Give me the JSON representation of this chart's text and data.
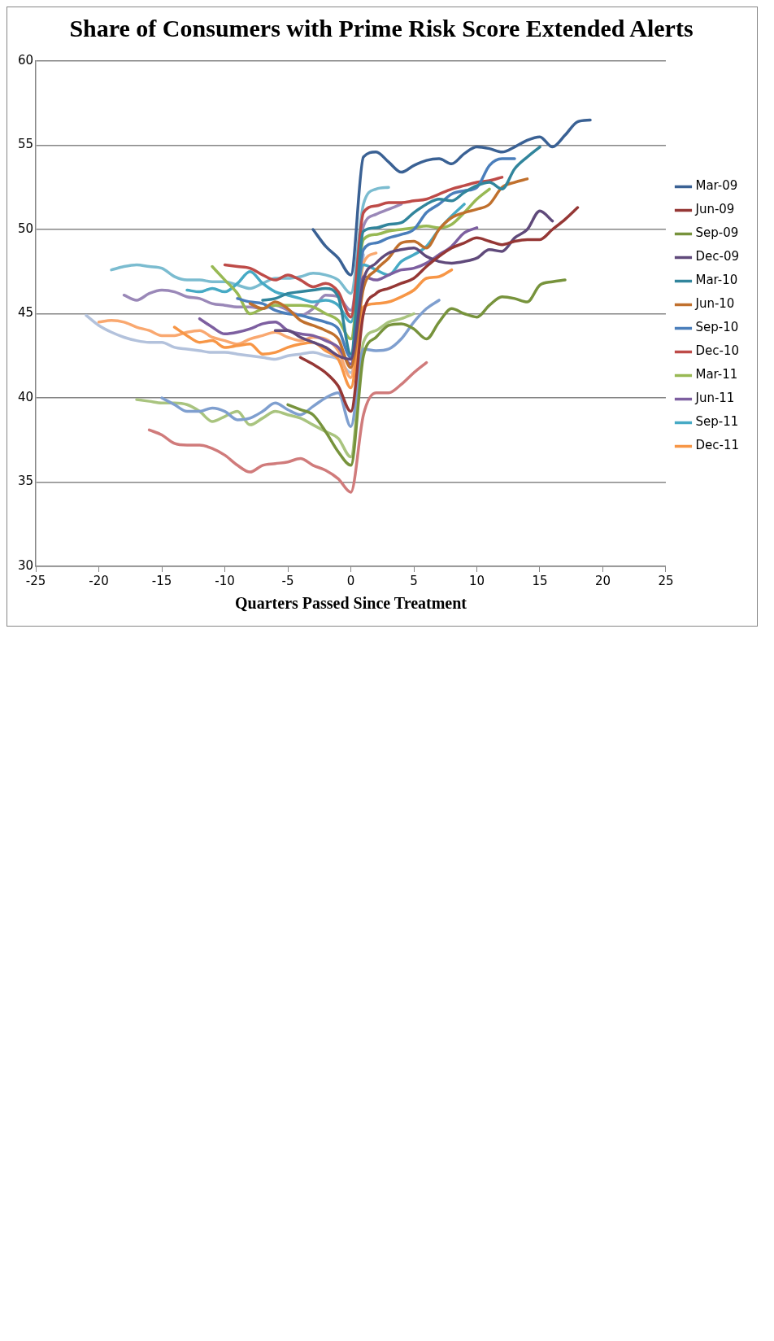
{
  "chart_data": {
    "type": "line",
    "title": "Share of Consumers with Prime Risk Score Extended Alerts",
    "xlabel": "Quarters Passed Since Treatment",
    "xlim": [
      -25,
      25
    ],
    "xticks": [
      -25,
      -20,
      -15,
      -10,
      -5,
      0,
      5,
      10,
      15,
      20,
      25
    ],
    "ylim": [
      30,
      60
    ],
    "yticks": [
      30,
      35,
      40,
      45,
      50,
      55,
      60
    ],
    "grid": "y",
    "legend": "right",
    "marker": "none",
    "line_style": "solid",
    "series": [
      {
        "name": "Mar-09",
        "color": "#3a6194",
        "x": [
          -3,
          -2,
          -1,
          0,
          1,
          2,
          3,
          4,
          5,
          6,
          7,
          8,
          9,
          10,
          11,
          12,
          13,
          14,
          15,
          16,
          17,
          18,
          19
        ],
        "values": [
          50.0,
          49.0,
          48.3,
          47.3,
          54.3,
          54.6,
          54.0,
          53.4,
          53.8,
          54.1,
          54.2,
          53.9,
          54.5,
          54.9,
          54.8,
          54.6,
          54.9,
          55.3,
          55.5,
          54.9,
          55.6,
          56.4,
          56.5
        ]
      },
      {
        "name": "Jun-09",
        "color": "#953735",
        "x": [
          -4,
          -3,
          -2,
          -1,
          0,
          1,
          2,
          3,
          4,
          5,
          6,
          7,
          8,
          9,
          10,
          11,
          12,
          13,
          14,
          15,
          16,
          17,
          18
        ],
        "values": [
          42.4,
          42.0,
          41.5,
          40.7,
          39.2,
          45.0,
          46.2,
          46.5,
          46.8,
          47.1,
          47.8,
          48.4,
          48.9,
          49.2,
          49.5,
          49.3,
          49.1,
          49.3,
          49.4,
          49.4,
          50.0,
          50.6,
          51.3
        ]
      },
      {
        "name": "Sep-09",
        "color": "#77933c",
        "x": [
          -5,
          -4,
          -3,
          -2,
          -1,
          0,
          1,
          2,
          3,
          4,
          5,
          6,
          7,
          8,
          9,
          10,
          11,
          12,
          13,
          14,
          15,
          16,
          17
        ],
        "values": [
          39.6,
          39.3,
          39.0,
          38.0,
          36.8,
          36.0,
          42.5,
          43.6,
          44.3,
          44.4,
          44.1,
          43.5,
          44.5,
          45.3,
          45.0,
          44.8,
          45.5,
          46.0,
          45.9,
          45.7,
          46.7,
          46.9,
          47.0
        ]
      },
      {
        "name": "Dec-09",
        "color": "#604a7b",
        "x": [
          -6,
          -5,
          -4,
          -3,
          -2,
          -1,
          0,
          1,
          2,
          3,
          4,
          5,
          6,
          7,
          8,
          9,
          10,
          11,
          12,
          13,
          14,
          15,
          16
        ],
        "values": [
          44.0,
          44.0,
          43.6,
          43.3,
          43.0,
          42.5,
          42.3,
          47.0,
          48.0,
          48.6,
          48.8,
          48.9,
          48.4,
          48.1,
          48.0,
          48.1,
          48.3,
          48.8,
          48.7,
          49.5,
          50.0,
          51.1,
          50.5
        ]
      },
      {
        "name": "Mar-10",
        "color": "#31859c",
        "x": [
          -7,
          -6,
          -5,
          -4,
          -3,
          -2,
          -1,
          0,
          1,
          2,
          3,
          4,
          5,
          6,
          7,
          8,
          9,
          10,
          11,
          12,
          13,
          14,
          15
        ],
        "values": [
          45.8,
          45.9,
          46.2,
          46.3,
          46.4,
          46.5,
          46.0,
          42.6,
          49.9,
          50.1,
          50.3,
          50.4,
          51.0,
          51.5,
          51.8,
          51.7,
          52.2,
          52.6,
          52.8,
          52.4,
          53.6,
          54.3,
          54.9
        ]
      },
      {
        "name": "Jun-10",
        "color": "#c0702d",
        "x": [
          -8,
          -7,
          -6,
          -5,
          -4,
          -3,
          -2,
          -1,
          0,
          1,
          2,
          3,
          4,
          5,
          6,
          7,
          8,
          9,
          10,
          11,
          12,
          13,
          14
        ],
        "values": [
          45.6,
          45.3,
          45.7,
          45.3,
          44.6,
          44.3,
          44.0,
          43.5,
          41.8,
          46.5,
          47.6,
          48.3,
          49.2,
          49.3,
          48.9,
          50.0,
          50.7,
          51.0,
          51.2,
          51.5,
          52.5,
          52.8,
          53.0
        ]
      },
      {
        "name": "Sep-10",
        "color": "#4a7ebb",
        "x": [
          -9,
          -8,
          -7,
          -6,
          -5,
          -4,
          -3,
          -2,
          -1,
          0,
          1,
          2,
          3,
          4,
          5,
          6,
          7,
          8,
          9,
          10,
          11,
          12,
          13
        ],
        "values": [
          45.9,
          45.7,
          45.6,
          45.2,
          45.0,
          44.9,
          44.7,
          44.5,
          44.1,
          42.4,
          48.8,
          49.2,
          49.5,
          49.7,
          50.0,
          51.0,
          51.5,
          52.1,
          52.3,
          52.5,
          53.8,
          54.2,
          54.2
        ]
      },
      {
        "name": "Dec-10",
        "color": "#be4b48",
        "x": [
          -10,
          -9,
          -8,
          -7,
          -6,
          -5,
          -4,
          -3,
          -2,
          -1,
          0,
          1,
          2,
          3,
          4,
          5,
          6,
          7,
          8,
          9,
          10,
          11,
          12
        ],
        "values": [
          47.9,
          47.8,
          47.7,
          47.3,
          47.0,
          47.3,
          47.0,
          46.6,
          46.8,
          46.3,
          44.8,
          51.0,
          51.4,
          51.6,
          51.6,
          51.7,
          51.8,
          52.1,
          52.4,
          52.6,
          52.8,
          52.9,
          53.1
        ]
      },
      {
        "name": "Mar-11",
        "color": "#98b954",
        "x": [
          -11,
          -10,
          -9,
          -8,
          -7,
          -6,
          -5,
          -4,
          -3,
          -2,
          -1,
          0,
          1,
          2,
          3,
          4,
          5,
          6,
          7,
          8,
          9,
          10,
          11
        ],
        "values": [
          47.8,
          47.0,
          46.2,
          45.0,
          45.3,
          45.5,
          45.5,
          45.5,
          45.4,
          45.0,
          44.6,
          43.5,
          49.4,
          49.7,
          49.9,
          50.0,
          50.1,
          50.2,
          50.1,
          50.3,
          51.0,
          51.8,
          52.4
        ]
      },
      {
        "name": "Jun-11",
        "color": "#7d5fa0",
        "x": [
          -12,
          -11,
          -10,
          -9,
          -8,
          -7,
          -6,
          -5,
          -4,
          -3,
          -2,
          -1,
          0,
          1,
          2,
          3,
          4,
          5,
          6,
          7,
          8,
          9,
          10
        ],
        "values": [
          44.7,
          44.2,
          43.8,
          43.9,
          44.1,
          44.4,
          44.5,
          44.0,
          43.8,
          43.7,
          43.4,
          43.0,
          42.0,
          47.2,
          47.0,
          47.3,
          47.6,
          47.7,
          48.0,
          48.5,
          49.0,
          49.8,
          50.1
        ]
      },
      {
        "name": "Sep-11",
        "color": "#46aac5",
        "x": [
          -13,
          -12,
          -11,
          -10,
          -9,
          -8,
          -7,
          -6,
          -5,
          -4,
          -3,
          -2,
          -1,
          0,
          1,
          2,
          3,
          4,
          5,
          6,
          7,
          8,
          9
        ],
        "values": [
          46.4,
          46.3,
          46.5,
          46.3,
          46.8,
          47.5,
          46.8,
          46.3,
          46.1,
          45.9,
          45.7,
          45.8,
          45.5,
          44.5,
          47.9,
          47.6,
          47.3,
          48.1,
          48.5,
          49.0,
          50.0,
          50.8,
          51.5
        ]
      },
      {
        "name": "Dec-11",
        "color": "#f79646",
        "x": [
          -14,
          -13,
          -12,
          -11,
          -10,
          -9,
          -8,
          -7,
          -6,
          -5,
          -4,
          -3,
          -2,
          -1,
          0,
          1,
          2,
          3,
          4,
          5,
          6,
          7,
          8
        ],
        "values": [
          44.2,
          43.7,
          43.3,
          43.4,
          43.0,
          43.1,
          43.2,
          42.6,
          42.7,
          43.0,
          43.2,
          43.3,
          42.8,
          42.3,
          40.6,
          45.4,
          45.6,
          45.7,
          46.0,
          46.4,
          47.1,
          47.2,
          47.6
        ]
      },
      {
        "color": "#7f9fcf",
        "x": [
          -15,
          -14,
          -13,
          -12,
          -11,
          -10,
          -9,
          -8,
          -7,
          -6,
          -5,
          -4,
          -3,
          -2,
          -1,
          0,
          1,
          2,
          3,
          4,
          5,
          6,
          7
        ],
        "values": [
          40.0,
          39.6,
          39.2,
          39.2,
          39.4,
          39.2,
          38.7,
          38.8,
          39.2,
          39.7,
          39.3,
          39.0,
          39.5,
          40.0,
          40.3,
          38.3,
          42.9,
          42.8,
          42.9,
          43.5,
          44.5,
          45.3,
          45.8
        ]
      },
      {
        "color": "#d07b7b",
        "x": [
          -16,
          -15,
          -14,
          -13,
          -12,
          -11,
          -10,
          -9,
          -8,
          -7,
          -6,
          -5,
          -4,
          -3,
          -2,
          -1,
          0,
          1,
          2,
          3,
          4,
          5,
          6
        ],
        "values": [
          38.1,
          37.8,
          37.3,
          37.2,
          37.2,
          37.0,
          36.6,
          36.0,
          35.6,
          36.0,
          36.1,
          36.2,
          36.4,
          36.0,
          35.7,
          35.2,
          34.4,
          39.0,
          40.3,
          40.3,
          40.8,
          41.5,
          42.1
        ]
      },
      {
        "color": "#a9c47f",
        "x": [
          -17,
          -16,
          -15,
          -14,
          -13,
          -12,
          -11,
          -10,
          -9,
          -8,
          -7,
          -6,
          -5,
          -4,
          -3,
          -2,
          -1,
          0,
          1,
          2,
          3,
          4,
          5
        ],
        "values": [
          39.9,
          39.8,
          39.7,
          39.7,
          39.6,
          39.2,
          38.6,
          38.9,
          39.2,
          38.4,
          38.8,
          39.2,
          39.0,
          38.8,
          38.4,
          38.0,
          37.6,
          36.5,
          43.3,
          44.0,
          44.5,
          44.7,
          45.0
        ]
      },
      {
        "color": "#9a88b8",
        "x": [
          -18,
          -17,
          -16,
          -15,
          -14,
          -13,
          -12,
          -11,
          -10,
          -9,
          -8,
          -7,
          -6,
          -5,
          -4,
          -3,
          -2,
          -1,
          0,
          1,
          2,
          3,
          4
        ],
        "values": [
          46.1,
          45.8,
          46.2,
          46.4,
          46.3,
          46.0,
          45.9,
          45.6,
          45.5,
          45.4,
          45.4,
          45.3,
          45.5,
          45.2,
          44.9,
          45.3,
          46.1,
          46.0,
          45.2,
          50.2,
          50.9,
          51.2,
          51.5
        ]
      },
      {
        "color": "#7bbcd0",
        "x": [
          -19,
          -18,
          -17,
          -16,
          -15,
          -14,
          -13,
          -12,
          -11,
          -10,
          -9,
          -8,
          -7,
          -6,
          -5,
          -4,
          -3,
          -2,
          -1,
          0,
          1,
          2,
          3
        ],
        "values": [
          47.6,
          47.8,
          47.9,
          47.8,
          47.7,
          47.2,
          47.0,
          47.0,
          46.9,
          46.9,
          46.7,
          46.5,
          46.8,
          47.1,
          47.1,
          47.2,
          47.4,
          47.3,
          47.0,
          46.2,
          51.5,
          52.4,
          52.5
        ]
      },
      {
        "color": "#f9a870",
        "x": [
          -20,
          -19,
          -18,
          -17,
          -16,
          -15,
          -14,
          -13,
          -12,
          -11,
          -10,
          -9,
          -8,
          -7,
          -6,
          -5,
          -4,
          -3,
          -2,
          -1,
          0,
          1,
          2
        ],
        "values": [
          44.5,
          44.6,
          44.5,
          44.2,
          44.0,
          43.7,
          43.7,
          43.9,
          44.0,
          43.6,
          43.4,
          43.2,
          43.5,
          43.7,
          43.9,
          43.6,
          43.4,
          43.6,
          43.5,
          42.8,
          41.2,
          48.0,
          48.6
        ]
      },
      {
        "color": "#b3c2dc",
        "x": [
          -21,
          -20,
          -19,
          -18,
          -17,
          -16,
          -15,
          -14,
          -13,
          -12,
          -11,
          -10,
          -9,
          -8,
          -7,
          -6,
          -5,
          -4,
          -3,
          -2,
          -1,
          0,
          1
        ],
        "values": [
          44.9,
          44.3,
          43.9,
          43.6,
          43.4,
          43.3,
          43.3,
          43.0,
          42.9,
          42.8,
          42.7,
          42.7,
          42.6,
          42.5,
          42.4,
          42.3,
          42.5,
          42.6,
          42.7,
          42.5,
          42.3,
          41.5,
          48.5
        ]
      }
    ]
  }
}
